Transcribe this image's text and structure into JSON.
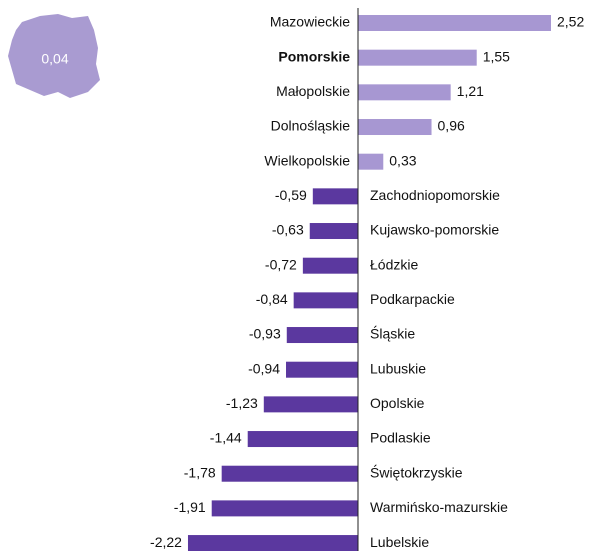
{
  "chart_data": {
    "type": "bar",
    "orientation": "horizontal",
    "categories": [
      "Mazowieckie",
      "Pomorskie",
      "Małopolskie",
      "Dolnośląskie",
      "Wielkopolskie",
      "Zachodniopomorskie",
      "Kujawsko-pomorskie",
      "Łódzkie",
      "Podkarpackie",
      "Śląskie",
      "Lubuskie",
      "Opolskie",
      "Podlaskie",
      "Świętokrzyskie",
      "Warmińsko-mazurskie",
      "Lubelskie"
    ],
    "values": [
      2.52,
      1.55,
      1.21,
      0.96,
      0.33,
      -0.59,
      -0.63,
      -0.72,
      -0.84,
      -0.93,
      -0.94,
      -1.23,
      -1.44,
      -1.78,
      -1.91,
      -2.22
    ],
    "value_labels": [
      "2,52",
      "1,55",
      "1,21",
      "0,96",
      "0,33",
      "-0,59",
      "-0,63",
      "-0,72",
      "-0,84",
      "-0,93",
      "-0,94",
      "-1,23",
      "-1,44",
      "-1,78",
      "-1,91",
      "-2,22"
    ],
    "positive_color": "#a797d2",
    "negative_color": "#5b389f",
    "highlight_index": 1,
    "annotation": "0,04"
  }
}
